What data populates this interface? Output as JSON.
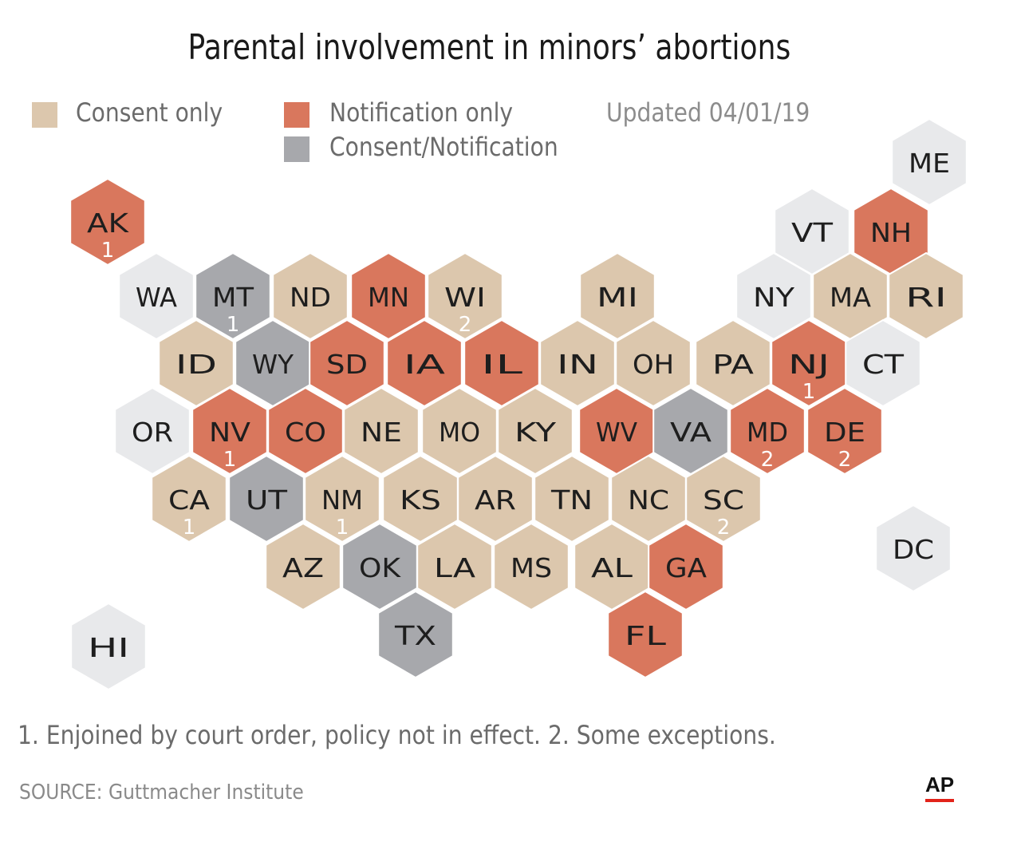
{
  "title": "Parental involvement in minors’ abortions",
  "legend": {
    "consent": "Consent only",
    "notification": "Notification only",
    "both": "Consent/Notification"
  },
  "updated": "Updated 04/01/19",
  "footnote": "1. Enjoined by court order, policy not in effect. 2. Some exceptions.",
  "source": "SOURCE: Guttmacher Institute",
  "credit": "AP",
  "colors": {
    "consent": "#dcc7ad",
    "notification": "#d9775d",
    "both": "#a7a8ac",
    "none": "#e8e9eb"
  },
  "states": [
    {
      "abbr": "ME",
      "cat": "none",
      "note": ""
    },
    {
      "abbr": "AK",
      "cat": "notification",
      "note": "1"
    },
    {
      "abbr": "VT",
      "cat": "none",
      "note": ""
    },
    {
      "abbr": "NH",
      "cat": "notification",
      "note": ""
    },
    {
      "abbr": "WA",
      "cat": "none",
      "note": ""
    },
    {
      "abbr": "MT",
      "cat": "both",
      "note": "1"
    },
    {
      "abbr": "ND",
      "cat": "consent",
      "note": ""
    },
    {
      "abbr": "MN",
      "cat": "notification",
      "note": ""
    },
    {
      "abbr": "WI",
      "cat": "consent",
      "note": "2"
    },
    {
      "abbr": "MI",
      "cat": "consent",
      "note": ""
    },
    {
      "abbr": "NY",
      "cat": "none",
      "note": ""
    },
    {
      "abbr": "MA",
      "cat": "consent",
      "note": ""
    },
    {
      "abbr": "RI",
      "cat": "consent",
      "note": ""
    },
    {
      "abbr": "ID",
      "cat": "consent",
      "note": ""
    },
    {
      "abbr": "WY",
      "cat": "both",
      "note": ""
    },
    {
      "abbr": "SD",
      "cat": "notification",
      "note": ""
    },
    {
      "abbr": "IA",
      "cat": "notification",
      "note": ""
    },
    {
      "abbr": "IL",
      "cat": "notification",
      "note": ""
    },
    {
      "abbr": "IN",
      "cat": "consent",
      "note": ""
    },
    {
      "abbr": "OH",
      "cat": "consent",
      "note": ""
    },
    {
      "abbr": "PA",
      "cat": "consent",
      "note": ""
    },
    {
      "abbr": "NJ",
      "cat": "notification",
      "note": "1"
    },
    {
      "abbr": "CT",
      "cat": "none",
      "note": ""
    },
    {
      "abbr": "OR",
      "cat": "none",
      "note": ""
    },
    {
      "abbr": "NV",
      "cat": "notification",
      "note": "1"
    },
    {
      "abbr": "CO",
      "cat": "notification",
      "note": ""
    },
    {
      "abbr": "NE",
      "cat": "consent",
      "note": ""
    },
    {
      "abbr": "MO",
      "cat": "consent",
      "note": ""
    },
    {
      "abbr": "KY",
      "cat": "consent",
      "note": ""
    },
    {
      "abbr": "WV",
      "cat": "notification",
      "note": ""
    },
    {
      "abbr": "VA",
      "cat": "both",
      "note": ""
    },
    {
      "abbr": "MD",
      "cat": "notification",
      "note": "2"
    },
    {
      "abbr": "DE",
      "cat": "notification",
      "note": "2"
    },
    {
      "abbr": "CA",
      "cat": "consent",
      "note": "1"
    },
    {
      "abbr": "UT",
      "cat": "both",
      "note": ""
    },
    {
      "abbr": "NM",
      "cat": "consent",
      "note": "1"
    },
    {
      "abbr": "KS",
      "cat": "consent",
      "note": ""
    },
    {
      "abbr": "AR",
      "cat": "consent",
      "note": ""
    },
    {
      "abbr": "TN",
      "cat": "consent",
      "note": ""
    },
    {
      "abbr": "NC",
      "cat": "consent",
      "note": ""
    },
    {
      "abbr": "SC",
      "cat": "consent",
      "note": "2"
    },
    {
      "abbr": "DC",
      "cat": "none",
      "note": ""
    },
    {
      "abbr": "AZ",
      "cat": "consent",
      "note": ""
    },
    {
      "abbr": "OK",
      "cat": "both",
      "note": ""
    },
    {
      "abbr": "LA",
      "cat": "consent",
      "note": ""
    },
    {
      "abbr": "MS",
      "cat": "consent",
      "note": ""
    },
    {
      "abbr": "AL",
      "cat": "consent",
      "note": ""
    },
    {
      "abbr": "GA",
      "cat": "notification",
      "note": ""
    },
    {
      "abbr": "HI",
      "cat": "none",
      "note": ""
    },
    {
      "abbr": "TX",
      "cat": "both",
      "note": ""
    },
    {
      "abbr": "FL",
      "cat": "notification",
      "note": ""
    }
  ]
}
